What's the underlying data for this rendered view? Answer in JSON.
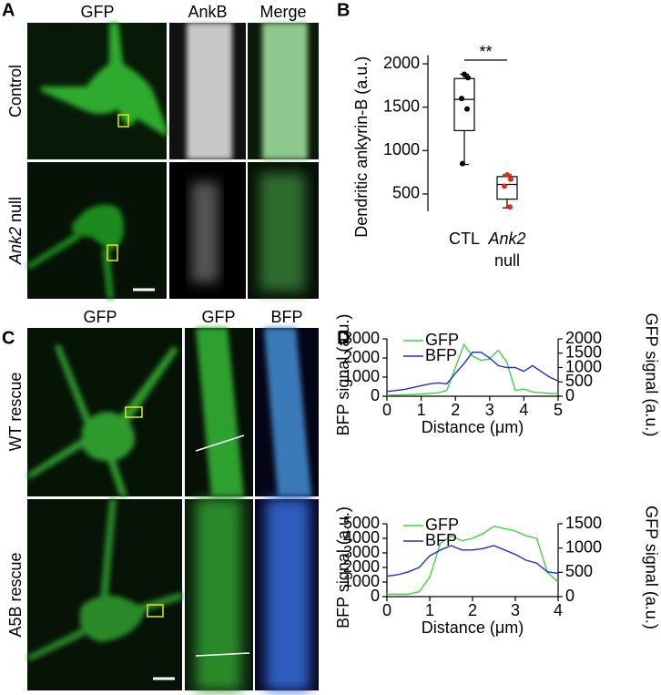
{
  "panel_labels": [
    "A",
    "B",
    "C",
    "D"
  ],
  "image_labels": {
    "a_columns": [
      "GFP",
      "AnkB",
      "Merge"
    ],
    "a_rows": [
      "Control",
      [
        "Ank2",
        "null"
      ]
    ],
    "c_columns": [
      "GFP",
      "GFP",
      "BFP"
    ],
    "c_rows": [
      "WT rescue",
      "A5B rescue"
    ]
  },
  "chart_data": [
    {
      "type": "box",
      "ylabel": "Dendritic ankyrin-B (a.u.)",
      "categories": [
        "CTL",
        [
          "Ank2",
          "null"
        ]
      ],
      "ylim": [
        300,
        2100
      ],
      "yticks": [
        500,
        1000,
        1500,
        2000
      ],
      "significance": "**",
      "boxes": [
        {
          "min": 840,
          "q1": 1230,
          "median": 1590,
          "q3": 1830,
          "max": 1880,
          "points": [
            1880,
            1840,
            1600,
            1480,
            850
          ],
          "point_color": "#000000"
        },
        {
          "min": 340,
          "q1": 440,
          "median": 610,
          "q3": 700,
          "max": 720,
          "points": [
            720,
            670,
            590,
            350
          ],
          "point_color": "#e8281e"
        }
      ]
    },
    {
      "type": "line",
      "xlabel": "Distance (μm)",
      "ylabel": "BFP signal (a.u.)",
      "y2label": "GFP signal (a.u.)",
      "xlim": [
        0,
        5
      ],
      "xticks": [
        0,
        1,
        2,
        3,
        4,
        5
      ],
      "ylim": [
        0,
        3000
      ],
      "yticks": [
        0,
        1000,
        2000,
        3000
      ],
      "y2lim": [
        0,
        2000
      ],
      "y2ticks": [
        0,
        500,
        1000,
        1500,
        2000
      ],
      "legend": "upper left",
      "x": [
        0,
        0.25,
        0.5,
        0.75,
        1,
        1.25,
        1.5,
        1.75,
        2,
        2.25,
        2.5,
        2.75,
        3,
        3.25,
        3.5,
        3.75,
        4,
        4.25,
        4.5,
        4.75,
        5
      ],
      "series": [
        {
          "name": "GFP",
          "color": "#3ed43e",
          "axis": "y2",
          "values": [
            30,
            40,
            50,
            60,
            80,
            100,
            120,
            200,
            1000,
            1800,
            1400,
            1250,
            1300,
            1600,
            1200,
            200,
            250,
            150,
            120,
            100,
            100
          ]
        },
        {
          "name": "BFP",
          "color": "#1f2fd6",
          "axis": "y",
          "values": [
            250,
            300,
            350,
            450,
            550,
            650,
            700,
            650,
            1200,
            1700,
            2300,
            2300,
            2000,
            1600,
            1500,
            1500,
            1300,
            1600,
            1300,
            1000,
            800
          ]
        }
      ]
    },
    {
      "type": "line",
      "xlabel": "Distance (μm)",
      "ylabel": "BFP signal (a.u.)",
      "y2label": "GFP signal (a.u.)",
      "xlim": [
        0,
        4
      ],
      "xticks": [
        0,
        1,
        2,
        3,
        4
      ],
      "ylim": [
        0,
        5000
      ],
      "yticks": [
        0,
        1000,
        2000,
        3000,
        4000,
        5000
      ],
      "y2lim": [
        0,
        1500
      ],
      "y2ticks": [
        0,
        500,
        1000,
        1500
      ],
      "legend": "upper left",
      "x": [
        0,
        0.25,
        0.5,
        0.75,
        1,
        1.25,
        1.5,
        1.75,
        2,
        2.25,
        2.5,
        2.75,
        3,
        3.25,
        3.5,
        3.75,
        4
      ],
      "series": [
        {
          "name": "GFP",
          "color": "#3ed43e",
          "axis": "y2",
          "values": [
            50,
            50,
            50,
            100,
            400,
            1100,
            1250,
            1150,
            1200,
            1300,
            1450,
            1400,
            1350,
            1250,
            1200,
            500,
            300
          ]
        },
        {
          "name": "BFP",
          "color": "#1f2fd6",
          "axis": "y",
          "values": [
            1400,
            1500,
            1700,
            2000,
            2800,
            3200,
            3500,
            3200,
            3200,
            3300,
            3500,
            3200,
            2900,
            2500,
            2300,
            1700,
            1600
          ]
        }
      ]
    }
  ]
}
